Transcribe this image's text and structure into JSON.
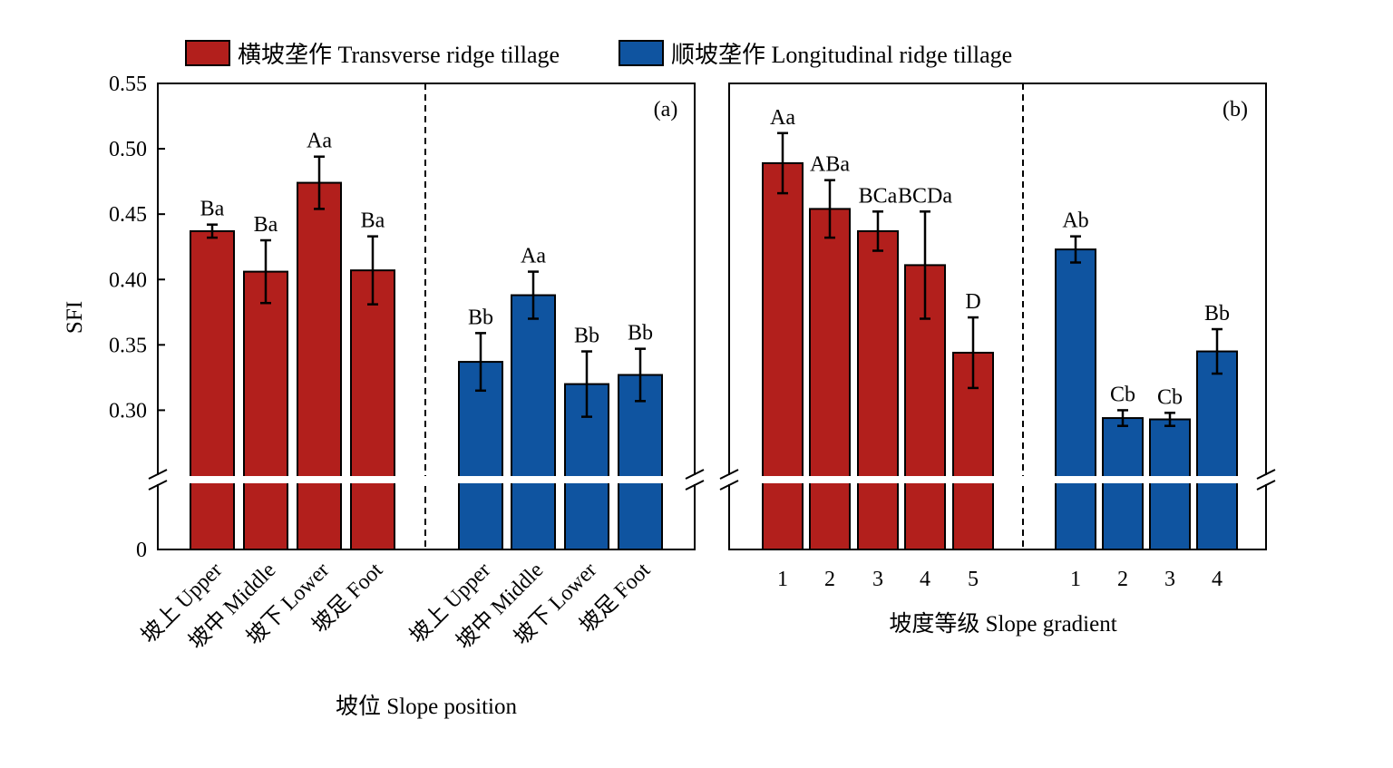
{
  "chart_data": {
    "type": "bar",
    "colors": {
      "transverse": "#b21f1c",
      "longitudinal": "#0f54a0"
    },
    "legend": [
      {
        "key": "transverse",
        "label": "横坡垄作 Transverse ridge tillage"
      },
      {
        "key": "longitudinal",
        "label": "顺坡垄作 Longitudinal ridge tillage"
      }
    ],
    "y_label": "SFI",
    "y_ticks": [
      "0.55",
      "0.50",
      "0.45",
      "0.40",
      "0.35",
      "0.30",
      "0"
    ],
    "y_range": [
      0.25,
      0.55
    ],
    "axis_break": true,
    "panels": [
      {
        "id": "a",
        "tag": "(a)",
        "xlabel": "坡位 Slope position",
        "groups": [
          {
            "series": "transverse",
            "categories": [
              "坡上 Upper",
              "坡中 Middle",
              "坡下 Lower",
              "坡足 Foot"
            ],
            "values": [
              0.437,
              0.406,
              0.474,
              0.407
            ],
            "errors": [
              0.005,
              0.024,
              0.02,
              0.026
            ],
            "letters": [
              "Ba",
              "Ba",
              "Aa",
              "Ba"
            ]
          },
          {
            "series": "longitudinal",
            "categories": [
              "坡上 Upper",
              "坡中 Middle",
              "坡下 Lower",
              "坡足 Foot"
            ],
            "values": [
              0.337,
              0.388,
              0.32,
              0.327
            ],
            "errors": [
              0.022,
              0.018,
              0.025,
              0.02
            ],
            "letters": [
              "Bb",
              "Aa",
              "Bb",
              "Bb"
            ]
          }
        ]
      },
      {
        "id": "b",
        "tag": "(b)",
        "xlabel": "坡度等级 Slope gradient",
        "groups": [
          {
            "series": "transverse",
            "categories": [
              "1",
              "2",
              "3",
              "4",
              "5"
            ],
            "values": [
              0.489,
              0.454,
              0.437,
              0.411,
              0.344
            ],
            "errors": [
              0.023,
              0.022,
              0.015,
              0.041,
              0.027
            ],
            "letters": [
              "Aa",
              "ABa",
              "BCa",
              "BCDa",
              "D"
            ]
          },
          {
            "series": "longitudinal",
            "categories": [
              "1",
              "2",
              "3",
              "4"
            ],
            "values": [
              0.423,
              0.294,
              0.293,
              0.345
            ],
            "errors": [
              0.01,
              0.006,
              0.005,
              0.017
            ],
            "letters": [
              "Ab",
              "Cb",
              "Cb",
              "Bb"
            ]
          }
        ]
      }
    ]
  }
}
